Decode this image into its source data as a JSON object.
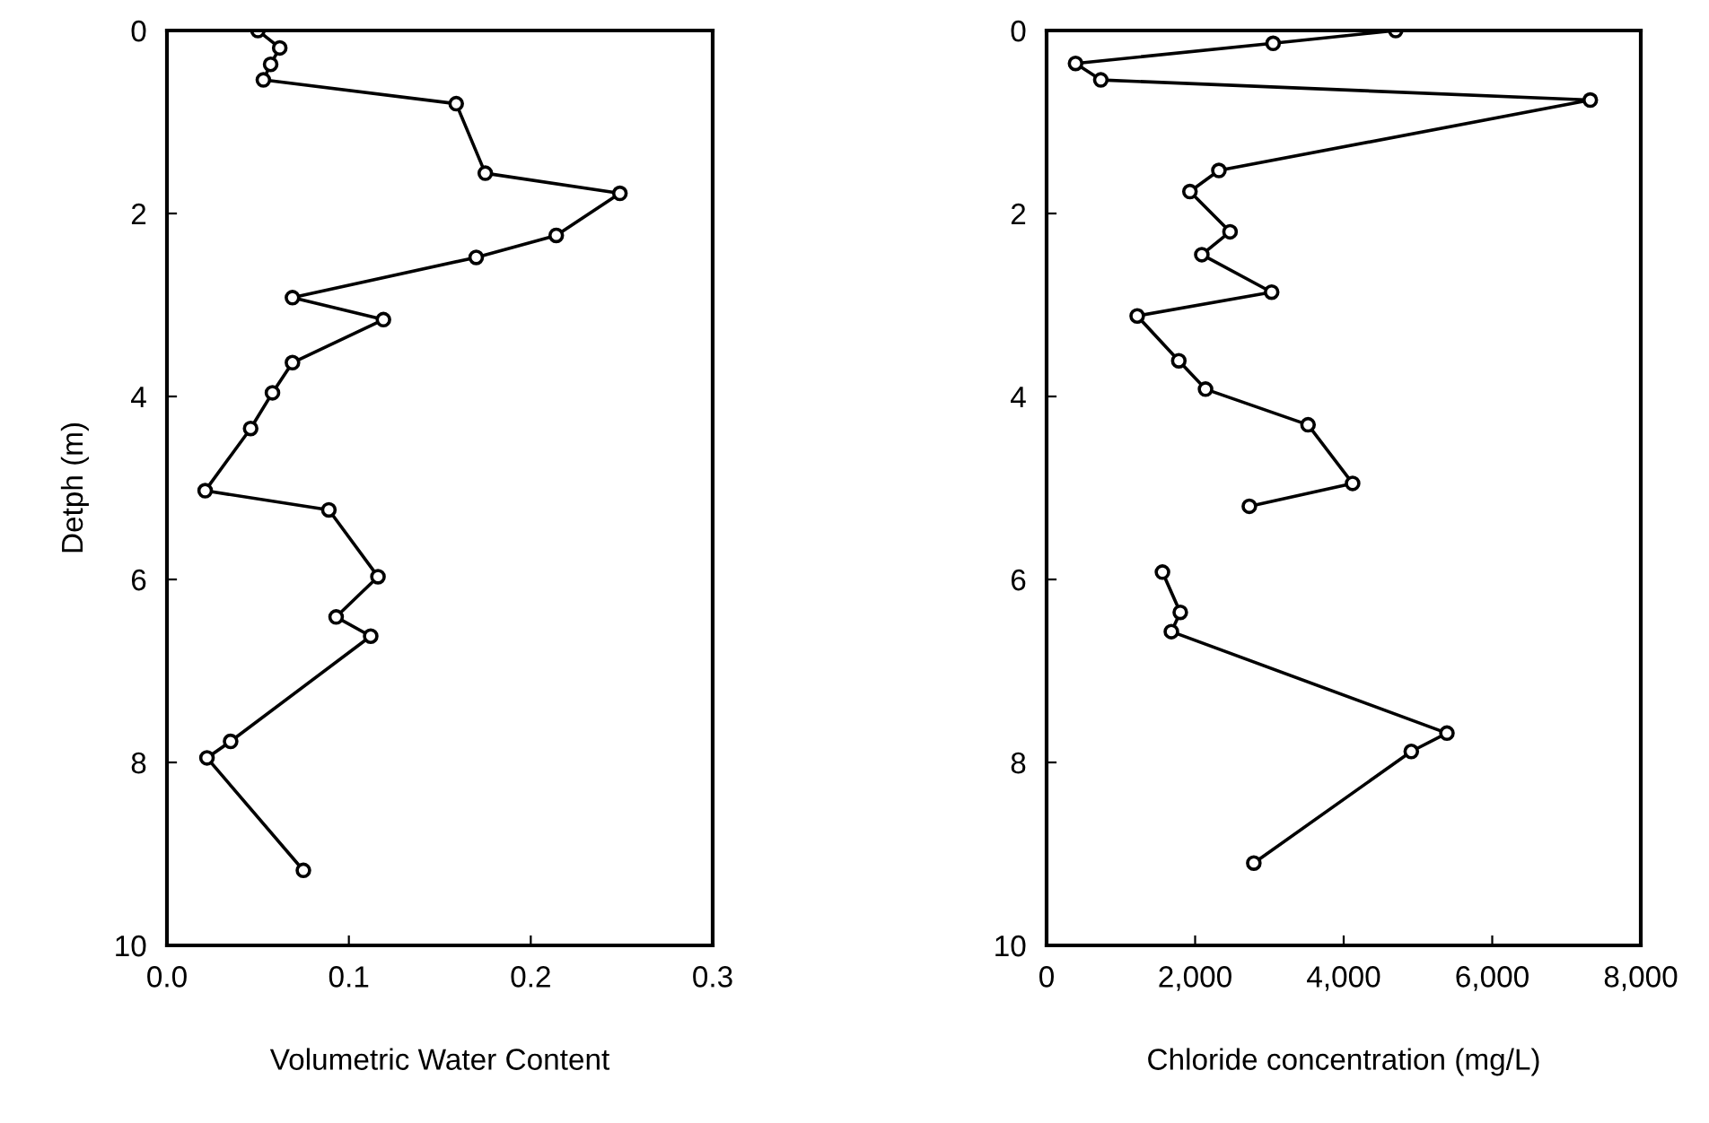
{
  "chart_data": [
    {
      "type": "line",
      "orientation": "horizontal",
      "xlabel": "Volumetric Water Content",
      "ylabel": "Detph (m)",
      "x": [
        0.0,
        0.19,
        0.37,
        0.54,
        0.8,
        1.56,
        1.78,
        2.24,
        2.48,
        2.92,
        3.16,
        3.63,
        3.96,
        4.35,
        5.03,
        5.24,
        5.97,
        6.41,
        6.62,
        7.77,
        7.95,
        9.18
      ],
      "series": [
        {
          "color": "#000000",
          "values": [
            0.05,
            0.062,
            0.057,
            0.053,
            0.159,
            0.175,
            0.249,
            0.214,
            0.17,
            0.069,
            0.119,
            0.069,
            0.058,
            0.046,
            0.021,
            0.089,
            0.116,
            0.093,
            0.112,
            0.035,
            0.022,
            0.075
          ]
        }
      ],
      "xlim": [
        0.0,
        0.3
      ],
      "xticks": [
        {
          "value": 0.0,
          "label": "0.0"
        },
        {
          "value": 0.1,
          "label": "0.1"
        },
        {
          "value": 0.2,
          "label": "0.2"
        },
        {
          "value": 0.3,
          "label": "0.3"
        }
      ],
      "ylim": [
        10,
        0
      ],
      "yticks": [
        0,
        2,
        4,
        6,
        8,
        10
      ],
      "marker": "circle",
      "line_style": "solid",
      "grid": false,
      "legend": false
    },
    {
      "type": "line",
      "orientation": "horizontal",
      "xlabel": "Chloride concentration (mg/L)",
      "x": [
        0.0,
        0.14,
        0.36,
        0.54,
        0.76,
        1.53,
        1.76,
        2.2,
        2.45,
        2.86,
        3.12,
        3.61,
        3.92,
        4.31,
        4.95,
        5.2,
        5.56,
        5.92,
        6.36,
        6.57,
        7.68,
        7.88,
        9.1
      ],
      "series": [
        {
          "color": "#000000",
          "values": [
            4700,
            3050,
            390,
            730,
            7320,
            2320,
            1930,
            2470,
            2090,
            3030,
            1220,
            1780,
            2140,
            3520,
            4120,
            2730,
            null,
            1560,
            1800,
            1680,
            5390,
            4910,
            2790
          ]
        }
      ],
      "xlim": [
        0,
        8000
      ],
      "xticks": [
        0,
        {
          "value": 2000,
          "label": "2,000"
        },
        {
          "value": 4000,
          "label": "4,000"
        },
        {
          "value": 6000,
          "label": "6,000"
        },
        {
          "value": 8000,
          "label": "8,000"
        }
      ],
      "ylim": [
        10,
        0
      ],
      "yticks": [
        0,
        2,
        4,
        6,
        8,
        10
      ],
      "marker": "circle",
      "line_style": "solid",
      "grid": false,
      "legend": false
    }
  ]
}
